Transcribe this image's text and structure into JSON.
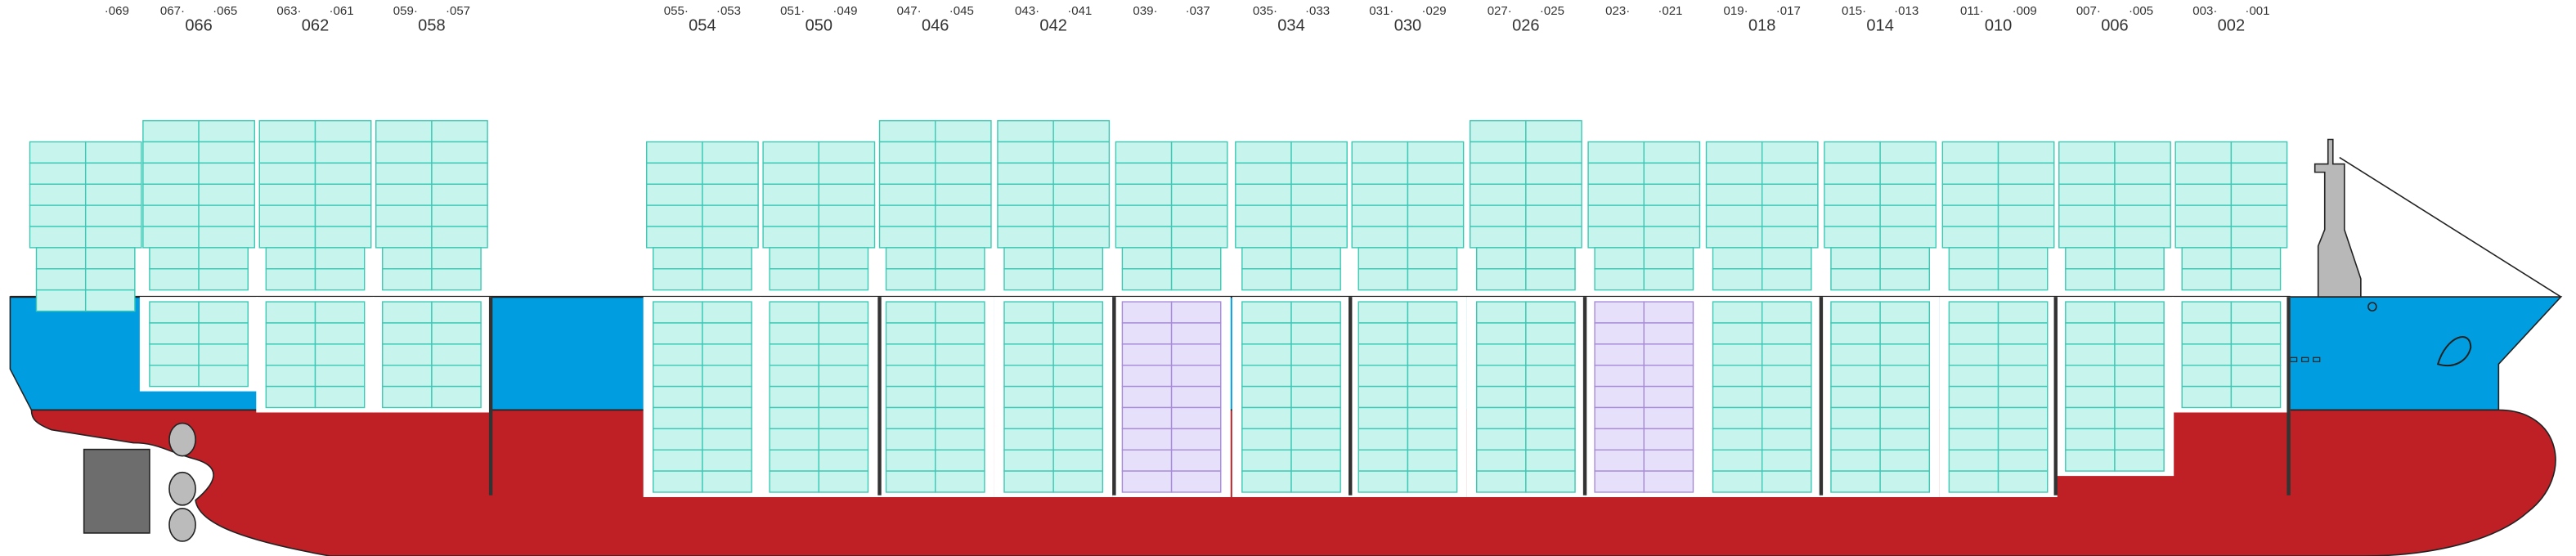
{
  "bays": [
    {
      "aft": "·069"
    },
    {
      "fwd": "067·",
      "aft": "·065",
      "number": "066"
    },
    {
      "fwd": "063·",
      "aft": "·061",
      "number": "062"
    },
    {
      "fwd": "059·",
      "aft": "·057",
      "number": "058"
    },
    {
      "fwd": "055·",
      "aft": "·053",
      "number": "054"
    },
    {
      "fwd": "051·",
      "aft": "·049",
      "number": "050"
    },
    {
      "fwd": "047·",
      "aft": "·045",
      "number": "046"
    },
    {
      "fwd": "043·",
      "aft": "·041",
      "number": "042"
    },
    {
      "fwd": "039·",
      "aft": "·037"
    },
    {
      "fwd": "035·",
      "aft": "·033",
      "number": "034"
    },
    {
      "fwd": "031·",
      "aft": "·029",
      "number": "030"
    },
    {
      "fwd": "027·",
      "aft": "·025",
      "number": "026"
    },
    {
      "fwd": "023·",
      "aft": "·021"
    },
    {
      "fwd": "019·",
      "aft": "·017",
      "number": "018"
    },
    {
      "fwd": "015·",
      "aft": "·013",
      "number": "014"
    },
    {
      "fwd": "011·",
      "aft": "·009",
      "number": "010"
    },
    {
      "fwd": "007·",
      "aft": "·005",
      "number": "006"
    },
    {
      "fwd": "003·",
      "aft": "·001",
      "number": "002"
    }
  ]
}
